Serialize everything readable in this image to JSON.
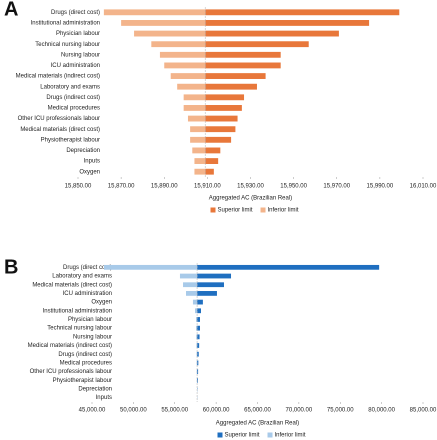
{
  "chart_data": [
    {
      "type": "tornado",
      "panel": "A",
      "xlabel": "Aggregated AC (Brazilian Real)",
      "categories": [
        "Drugs (direct cost)",
        "Institutional administration",
        "Physician labour",
        "Technical nursing labour",
        "Nursing labour",
        "ICU administration",
        "Medical materials (indirect cost)",
        "Laboratory and exams",
        "Drugs (indirect cost)",
        "Medical procedures",
        "Other ICU professionals labour",
        "Medical materials (direct cost)",
        "Physiotherapist labour",
        "Depreciation",
        "Inputs",
        "Oxygen"
      ],
      "base": 15909,
      "series": [
        {
          "name": "Superior limit",
          "color": "#e8773a",
          "values": [
            15999,
            15985,
            15971,
            15957,
            15944,
            15944,
            15937,
            15933,
            15927,
            15926,
            15924,
            15923,
            15921,
            15916,
            15915,
            15913
          ]
        },
        {
          "name": "Inferior limit",
          "color": "#f3b48b",
          "values": [
            15862,
            15870,
            15876,
            15884,
            15888,
            15890,
            15893,
            15896,
            15899,
            15899,
            15901,
            15902,
            15902,
            15903,
            15904,
            15904
          ]
        }
      ],
      "xlim": [
        15850,
        16010
      ],
      "xticks": [
        {
          "value": 15850,
          "label": "15,850.00"
        },
        {
          "value": 15870,
          "label": "15,870.00"
        },
        {
          "value": 15890,
          "label": "15,890.00"
        },
        {
          "value": 15910,
          "label": "15,910.00"
        },
        {
          "value": 15930,
          "label": "15,930.00"
        },
        {
          "value": 15950,
          "label": "15,950.00"
        },
        {
          "value": 15970,
          "label": "15,970.00"
        },
        {
          "value": 15990,
          "label": "15,990.00"
        },
        {
          "value": 16010,
          "label": "16,010.00"
        }
      ]
    },
    {
      "type": "tornado",
      "panel": "B",
      "xlabel": "Aggregated AC (Brazilian Real)",
      "categories": [
        "Drugs (direct cost)",
        "Laboratory and exams",
        "Medical materials (direct cost)",
        "ICU administration",
        "Oxygen",
        "Institutional administration",
        "Physician labour",
        "Technical nursing labour",
        "Nursing labour",
        "Medical materials (indirect cost)",
        "Drugs (indirect cost)",
        "Medical procedures",
        "Other ICU professionals labour",
        "Physiotherapist labour",
        "Depreciation",
        "Inputs"
      ],
      "base": 57700,
      "series": [
        {
          "name": "Superior limit",
          "color": "#1f6fc0",
          "values": [
            79700,
            61800,
            60950,
            60100,
            58400,
            58170,
            58050,
            58050,
            58000,
            57950,
            57900,
            57850,
            57820,
            57800,
            57750,
            57720
          ]
        },
        {
          "name": "Inferior limit",
          "color": "#a8cae9",
          "values": [
            46450,
            55630,
            56000,
            56360,
            57200,
            57450,
            57570,
            57570,
            57600,
            57620,
            57640,
            57650,
            57660,
            57670,
            57690,
            57695
          ]
        }
      ],
      "xlim": [
        45000,
        85000
      ],
      "xticks": [
        {
          "value": 45000,
          "label": "45,000.00"
        },
        {
          "value": 50000,
          "label": "50,000.00"
        },
        {
          "value": 55000,
          "label": "55,000.00"
        },
        {
          "value": 60000,
          "label": "60,000.00"
        },
        {
          "value": 65000,
          "label": "65,000.00"
        },
        {
          "value": 70000,
          "label": "70,000.00"
        },
        {
          "value": 75000,
          "label": "75,000.00"
        },
        {
          "value": 80000,
          "label": "80,000.00"
        },
        {
          "value": 85000,
          "label": "85,000.00"
        }
      ]
    }
  ]
}
